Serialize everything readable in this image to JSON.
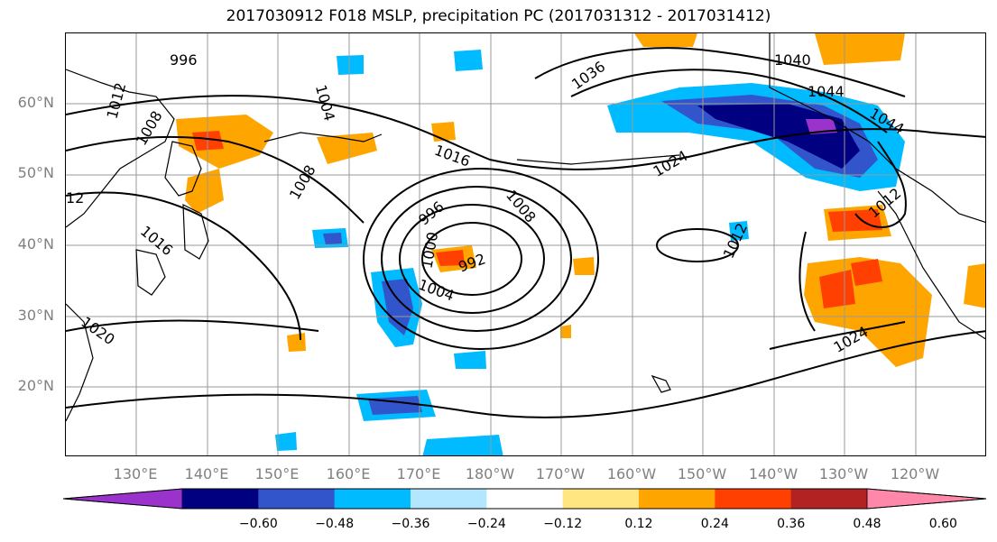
{
  "title": "2017030912 F018 MSLP, precipitation PC (2017031312 - 2017031412)",
  "map": {
    "lat_labels": [
      {
        "label": "60°N",
        "lat": 60
      },
      {
        "label": "50°N",
        "lat": 50
      },
      {
        "label": "40°N",
        "lat": 40
      },
      {
        "label": "30°N",
        "lat": 30
      },
      {
        "label": "20°N",
        "lat": 20
      }
    ],
    "lon_labels": [
      {
        "label": "130°E",
        "lon": 130
      },
      {
        "label": "140°E",
        "lon": 140
      },
      {
        "label": "150°E",
        "lon": 150
      },
      {
        "label": "160°E",
        "lon": 160
      },
      {
        "label": "170°E",
        "lon": 170
      },
      {
        "label": "180°W",
        "lon": 180
      },
      {
        "label": "170°W",
        "lon": 190
      },
      {
        "label": "160°W",
        "lon": 200
      },
      {
        "label": "150°W",
        "lon": 210
      },
      {
        "label": "140°W",
        "lon": 220
      },
      {
        "label": "130°W",
        "lon": 230
      },
      {
        "label": "120°W",
        "lon": 240
      }
    ],
    "mslp_labels": [
      "996",
      "1012",
      "1008",
      "1004",
      "1008",
      "12",
      "1016",
      "1020",
      "1016",
      "996",
      "1000",
      "992",
      "1004",
      "1008",
      "1012",
      "1024",
      "1036",
      "1040",
      "1044",
      "1044",
      "1024",
      "1012"
    ],
    "colors": {
      "ocean": "#ffffff",
      "coast": "#000000",
      "grid": "#999999",
      "contour": "#000000"
    }
  },
  "colorbar": {
    "colors": [
      "#9933cc",
      "#000080",
      "#3355cc",
      "#00bbff",
      "#b3e6ff",
      "#ffffff",
      "#ffe680",
      "#ffa500",
      "#ff4000",
      "#b22222",
      "#ff88aa"
    ],
    "ticks": [
      "−0.60",
      "−0.48",
      "−0.36",
      "−0.24",
      "−0.12",
      "0.12",
      "0.24",
      "0.36",
      "0.48",
      "0.60"
    ]
  }
}
